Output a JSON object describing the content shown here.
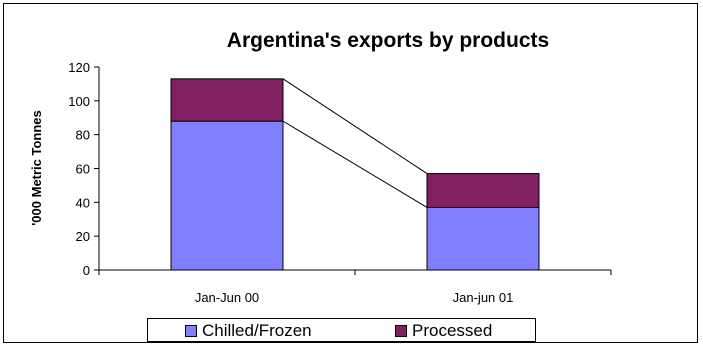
{
  "chart_data": {
    "type": "bar",
    "stacked": true,
    "title": "Argentina's exports by products",
    "xlabel": "",
    "ylabel": "'000 Metric Tonnes",
    "categories": [
      "Jan-Jun 00",
      "Jan-jun 01"
    ],
    "series": [
      {
        "name": "Chilled/Frozen",
        "values": [
          88,
          37
        ],
        "color": "#8080ff"
      },
      {
        "name": "Processed",
        "values": [
          25,
          20
        ],
        "color": "#802060"
      }
    ],
    "ylim": [
      0,
      120
    ],
    "yticks": [
      0,
      20,
      40,
      60,
      80,
      100,
      120
    ],
    "grid": false,
    "legend_position": "bottom",
    "series_lines": true
  }
}
